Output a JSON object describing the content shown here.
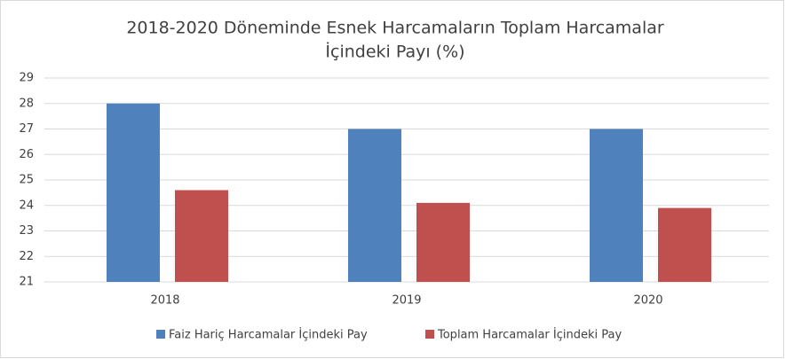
{
  "chart_data": {
    "type": "bar",
    "title": [
      "2018-2020 Döneminde Esnek Harcamaların  Toplam Harcamalar",
      "İçindeki Payı (%)"
    ],
    "categories": [
      "2018",
      "2019",
      "2020"
    ],
    "series": [
      {
        "name": "Faiz Hariç Harcamalar İçindeki Pay",
        "color": "#4f81bd",
        "values": [
          28,
          27,
          27
        ]
      },
      {
        "name": "Toplam Harcamalar İçindeki Pay",
        "color": "#c0504d",
        "values": [
          24.6,
          24.1,
          23.9
        ]
      }
    ],
    "ylim": [
      21,
      29
    ],
    "yticks": [
      21,
      22,
      23,
      24,
      25,
      26,
      27,
      28,
      29
    ],
    "grid": true,
    "legend": "bottom"
  }
}
